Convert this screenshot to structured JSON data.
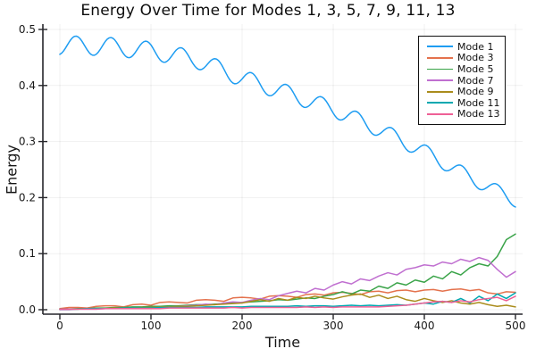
{
  "chart_data": {
    "type": "line",
    "title": "Energy Over Time for Modes 1, 3, 5, 7, 9, 11, 13",
    "xlabel": "Time",
    "ylabel": "Energy",
    "xlim": [
      0,
      500
    ],
    "ylim": [
      0,
      0.5
    ],
    "grid": true,
    "legend_position": "top-right",
    "x_tick_labels": [
      "0",
      "100",
      "200",
      "300",
      "400",
      "500"
    ],
    "x_tick_values": [
      0,
      100,
      200,
      300,
      400,
      500
    ],
    "y_tick_labels": [
      "0.0",
      "0.1",
      "0.2",
      "0.3",
      "0.4",
      "0.5"
    ],
    "y_tick_values": [
      0,
      0.1,
      0.2,
      0.3,
      0.4,
      0.5
    ],
    "series": [
      {
        "name": "Mode 1",
        "color": "#1E9DF2",
        "generator": {
          "kind": "oscillating_decay",
          "period": 38.5,
          "phase_deg": 285,
          "t_range": [
            0,
            500
          ],
          "t_step": 2,
          "baseline": [
            [
              0,
              0.472
            ],
            [
              50,
              0.47
            ],
            [
              100,
              0.462
            ],
            [
              150,
              0.446
            ],
            [
              200,
              0.413
            ],
            [
              250,
              0.386
            ],
            [
              300,
              0.358
            ],
            [
              350,
              0.322
            ],
            [
              400,
              0.282
            ],
            [
              450,
              0.236
            ],
            [
              500,
              0.195
            ]
          ],
          "amplitude": [
            [
              0,
              0.017
            ],
            [
              250,
              0.015
            ],
            [
              500,
              0.012
            ]
          ]
        }
      },
      {
        "name": "Mode 3",
        "color": "#E4724D",
        "t0": 0,
        "dt": 10,
        "values": [
          0.002,
          0.004,
          0.004,
          0.003,
          0.006,
          0.007,
          0.007,
          0.005,
          0.009,
          0.01,
          0.008,
          0.013,
          0.014,
          0.013,
          0.012,
          0.017,
          0.018,
          0.017,
          0.015,
          0.021,
          0.022,
          0.021,
          0.019,
          0.024,
          0.025,
          0.024,
          0.022,
          0.027,
          0.028,
          0.026,
          0.03,
          0.031,
          0.029,
          0.027,
          0.032,
          0.033,
          0.03,
          0.034,
          0.035,
          0.032,
          0.035,
          0.036,
          0.033,
          0.036,
          0.037,
          0.034,
          0.036,
          0.03,
          0.028,
          0.032,
          0.031
        ]
      },
      {
        "name": "Mode 5",
        "color": "#39A348",
        "t0": 0,
        "dt": 10,
        "values": [
          0.001,
          0.001,
          0.002,
          0.002,
          0.003,
          0.003,
          0.004,
          0.004,
          0.005,
          0.005,
          0.006,
          0.006,
          0.007,
          0.007,
          0.008,
          0.009,
          0.009,
          0.01,
          0.011,
          0.012,
          0.013,
          0.014,
          0.015,
          0.016,
          0.018,
          0.017,
          0.019,
          0.021,
          0.02,
          0.024,
          0.027,
          0.032,
          0.028,
          0.035,
          0.033,
          0.042,
          0.038,
          0.048,
          0.044,
          0.053,
          0.049,
          0.06,
          0.055,
          0.068,
          0.062,
          0.075,
          0.082,
          0.078,
          0.095,
          0.125,
          0.135
        ]
      },
      {
        "name": "Mode 7",
        "color": "#C06FD0",
        "t0": 0,
        "dt": 10,
        "values": [
          0.0,
          0.0,
          0.001,
          0.001,
          0.001,
          0.002,
          0.002,
          0.002,
          0.003,
          0.003,
          0.004,
          0.004,
          0.005,
          0.006,
          0.007,
          0.008,
          0.01,
          0.009,
          0.012,
          0.014,
          0.013,
          0.017,
          0.02,
          0.018,
          0.025,
          0.029,
          0.033,
          0.03,
          0.038,
          0.035,
          0.044,
          0.05,
          0.046,
          0.055,
          0.052,
          0.06,
          0.066,
          0.062,
          0.072,
          0.075,
          0.08,
          0.078,
          0.085,
          0.082,
          0.09,
          0.086,
          0.093,
          0.088,
          0.072,
          0.058,
          0.068
        ]
      },
      {
        "name": "Mode 9",
        "color": "#AA8C1C",
        "t0": 0,
        "dt": 10,
        "values": [
          0.001,
          0.001,
          0.001,
          0.002,
          0.002,
          0.002,
          0.003,
          0.003,
          0.003,
          0.004,
          0.004,
          0.005,
          0.005,
          0.006,
          0.006,
          0.007,
          0.008,
          0.009,
          0.01,
          0.011,
          0.012,
          0.015,
          0.018,
          0.015,
          0.02,
          0.017,
          0.022,
          0.02,
          0.024,
          0.021,
          0.019,
          0.023,
          0.026,
          0.028,
          0.022,
          0.026,
          0.02,
          0.024,
          0.018,
          0.015,
          0.02,
          0.016,
          0.013,
          0.016,
          0.012,
          0.01,
          0.013,
          0.009,
          0.006,
          0.008,
          0.005
        ]
      },
      {
        "name": "Mode 11",
        "color": "#00A8B0",
        "t0": 0,
        "dt": 10,
        "values": [
          0.001,
          0.001,
          0.001,
          0.002,
          0.002,
          0.002,
          0.002,
          0.003,
          0.003,
          0.003,
          0.003,
          0.004,
          0.004,
          0.004,
          0.004,
          0.004,
          0.005,
          0.005,
          0.005,
          0.005,
          0.005,
          0.006,
          0.006,
          0.006,
          0.006,
          0.006,
          0.007,
          0.006,
          0.007,
          0.007,
          0.006,
          0.007,
          0.008,
          0.007,
          0.008,
          0.007,
          0.008,
          0.009,
          0.008,
          0.01,
          0.012,
          0.01,
          0.015,
          0.013,
          0.02,
          0.012,
          0.024,
          0.016,
          0.028,
          0.02,
          0.03
        ]
      },
      {
        "name": "Mode 13",
        "color": "#EE6096",
        "t0": 0,
        "dt": 10,
        "values": [
          0.001,
          0.001,
          0.001,
          0.001,
          0.001,
          0.002,
          0.002,
          0.002,
          0.002,
          0.002,
          0.002,
          0.002,
          0.003,
          0.003,
          0.003,
          0.003,
          0.003,
          0.003,
          0.003,
          0.004,
          0.003,
          0.004,
          0.004,
          0.004,
          0.004,
          0.004,
          0.004,
          0.005,
          0.004,
          0.005,
          0.004,
          0.005,
          0.005,
          0.005,
          0.005,
          0.005,
          0.006,
          0.007,
          0.008,
          0.01,
          0.012,
          0.014,
          0.015,
          0.013,
          0.016,
          0.014,
          0.018,
          0.02,
          0.022,
          0.016,
          0.024
        ]
      }
    ],
    "style": {
      "grid_color": "rgba(0,0,0,0.06)",
      "spine_color": "#26262b",
      "line_width": 1.5
    }
  }
}
